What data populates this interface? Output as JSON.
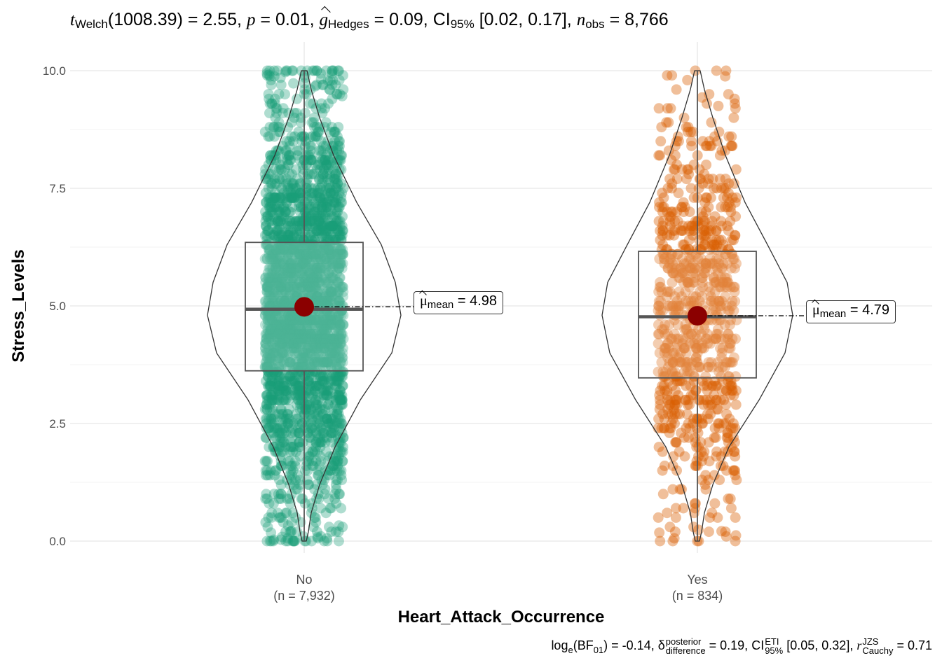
{
  "title": {
    "t_symbol": "t",
    "t_sub": "Welch",
    "t_val": "(1008.39) = 2.55,",
    "p_symbol": "p",
    "p_val": "= 0.01,",
    "g_symbol": "g",
    "g_sub": "Hedges",
    "g_val": "= 0.09, CI",
    "ci_sub": "95%",
    "ci_val": "[0.02, 0.17],",
    "n_symbol": "n",
    "n_sub": "obs",
    "n_val": "= 8,766"
  },
  "caption": {
    "log_text": "log",
    "log_sub": "e",
    "bf_text": "(BF",
    "bf_sub": "01",
    "bf_val": ") = -0.14,",
    "delta": "δ",
    "delta_sup": "posterior",
    "delta_sub": "difference",
    "delta_val": "= 0.19, CI",
    "ci_sup": "ETI",
    "ci_sub": "95%",
    "ci_val": "[0.05, 0.32],",
    "r_symbol": "r",
    "r_sup": "JZS",
    "r_sub": "Cauchy",
    "r_val": "= 0.71"
  },
  "chart_data": {
    "type": "violin-box-scatter",
    "xlabel": "Heart_Attack_Occurrence",
    "ylabel": "Stress_Levels",
    "ylim": [
      0,
      10
    ],
    "yticks": [
      "0.0",
      "2.5",
      "5.0",
      "7.5",
      "10.0"
    ],
    "grid": true,
    "groups": [
      {
        "category": "No",
        "n_label": "(n = 7,932)",
        "n": 7932,
        "color": "#1b9e77",
        "box": {
          "min": 0,
          "q1": 3.62,
          "median": 4.93,
          "q3": 6.35,
          "max": 10
        },
        "mean": 4.98,
        "mean_label_sym": "μ",
        "mean_label_sub": "mean",
        "mean_label_val": "= 4.98"
      },
      {
        "category": "Yes",
        "n_label": "(n = 834)",
        "n": 834,
        "color": "#d95f02",
        "box": {
          "min": 0,
          "q1": 3.47,
          "median": 4.77,
          "q3": 6.16,
          "max": 10
        },
        "mean": 4.79,
        "mean_label_sym": "μ",
        "mean_label_sub": "mean",
        "mean_label_val": "= 4.79"
      }
    ]
  }
}
